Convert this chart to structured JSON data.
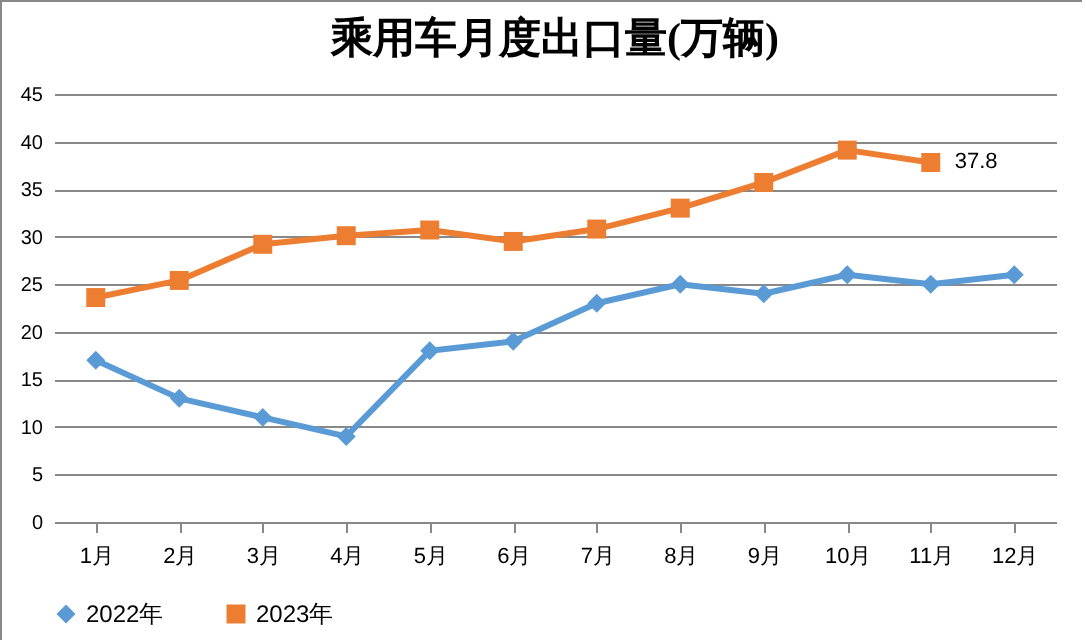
{
  "chart_data": {
    "type": "line",
    "title": "乘用车月度出口量(万辆)",
    "categories": [
      "1月",
      "2月",
      "3月",
      "4月",
      "5月",
      "6月",
      "7月",
      "8月",
      "9月",
      "10月",
      "11月",
      "12月"
    ],
    "series": [
      {
        "name": "2022年",
        "color": "#5b9bd5",
        "marker": "diamond",
        "values": [
          17,
          13,
          11,
          9,
          18,
          19,
          23,
          25,
          24,
          26,
          25,
          26
        ]
      },
      {
        "name": "2023年",
        "color": "#ed7d31",
        "marker": "square",
        "values": [
          23.6,
          25.4,
          29.2,
          30.1,
          30.7,
          29.5,
          30.8,
          33.0,
          35.7,
          39.1,
          37.8,
          null
        ],
        "value_labels": [
          null,
          null,
          null,
          null,
          null,
          null,
          null,
          null,
          null,
          null,
          "37.8",
          null
        ]
      }
    ],
    "ylim": [
      0,
      45
    ],
    "yticks": [
      0,
      5,
      10,
      15,
      20,
      25,
      30,
      35,
      40,
      45
    ],
    "grid": "y",
    "legend": "bottom"
  }
}
